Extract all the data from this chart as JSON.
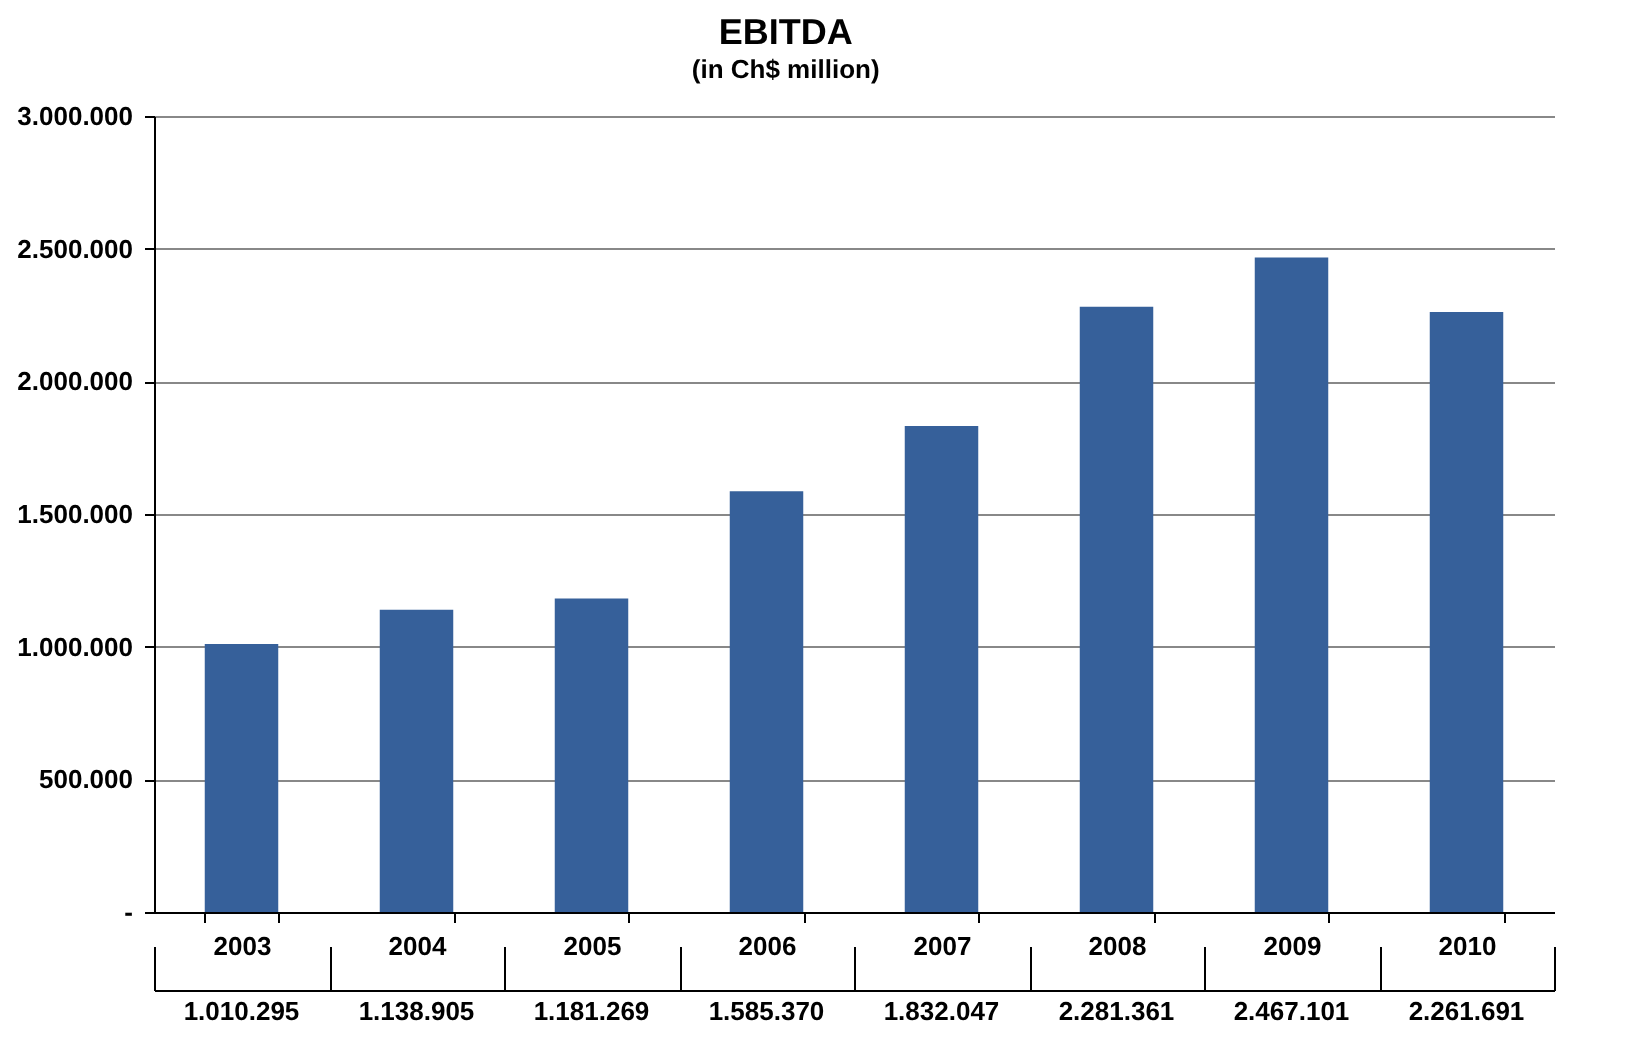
{
  "chart_data": {
    "type": "bar",
    "title": "EBITDA",
    "subtitle": "(in Ch$ million)",
    "categories": [
      "2003",
      "2004",
      "2005",
      "2006",
      "2007",
      "2008",
      "2009",
      "2010"
    ],
    "series": [
      {
        "color": "#36609a",
        "values": [
          1010295,
          1138905,
          1181269,
          1585370,
          1832047,
          2281361,
          2467101,
          2261691
        ],
        "value_labels": [
          "1.010.295",
          "1.138.905",
          "1.181.269",
          "1.585.370",
          "1.832.047",
          "2.281.361",
          "2.467.101",
          "2.261.691"
        ]
      }
    ],
    "ylim": [
      0,
      3000000
    ],
    "yticks": [
      {
        "value": 0,
        "label": "-"
      },
      {
        "value": 500000,
        "label": "500.000"
      },
      {
        "value": 1000000,
        "label": "1.000.000"
      },
      {
        "value": 1500000,
        "label": "1.500.000"
      },
      {
        "value": 2000000,
        "label": "2.000.000"
      },
      {
        "value": 2500000,
        "label": "2.500.000"
      },
      {
        "value": 3000000,
        "label": "3.000.000"
      }
    ],
    "grid": "y",
    "legend": false
  }
}
